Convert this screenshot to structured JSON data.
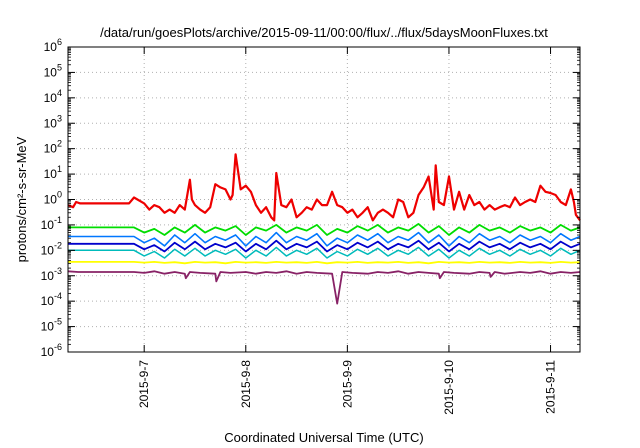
{
  "chart_data": {
    "type": "line",
    "title": "/data/run/goesPlots/archive/2015-09-11/00:00/flux/../flux/5daysMoonFluxes.txt",
    "xlabel": "Coordinated Universal Time (UTC)",
    "ylabel": "protons/cm²-s-sr-MeV",
    "yscale": "log",
    "ylim_exp": [
      -6,
      6
    ],
    "y_ticks": [
      {
        "base": "10",
        "exp": "-6"
      },
      {
        "base": "10",
        "exp": "-5"
      },
      {
        "base": "10",
        "exp": "-4"
      },
      {
        "base": "10",
        "exp": "-3"
      },
      {
        "base": "10",
        "exp": "-2"
      },
      {
        "base": "10",
        "exp": "-1"
      },
      {
        "base": "10",
        "exp": "0"
      },
      {
        "base": "10",
        "exp": "1"
      },
      {
        "base": "10",
        "exp": "2"
      },
      {
        "base": "10",
        "exp": "3"
      },
      {
        "base": "10",
        "exp": "4"
      },
      {
        "base": "10",
        "exp": "5"
      },
      {
        "base": "10",
        "exp": "6"
      }
    ],
    "xlim": [
      6.0,
      11.04
    ],
    "x_ticks": [
      {
        "value": 6.75,
        "label": "2015-9-7"
      },
      {
        "value": 7.75,
        "label": "2015-9-8"
      },
      {
        "value": 8.75,
        "label": "2015-9-9"
      },
      {
        "value": 9.75,
        "label": "2015-9-10"
      },
      {
        "value": 10.75,
        "label": "2015-9-11"
      }
    ],
    "grid": true,
    "series": [
      {
        "color": "#ee0000",
        "width": 2.2,
        "x": [
          6.0,
          6.05,
          6.08,
          6.12,
          6.2,
          6.3,
          6.4,
          6.6,
          6.65,
          6.75,
          6.8,
          6.85,
          6.9,
          6.95,
          7.0,
          7.05,
          7.1,
          7.15,
          7.2,
          7.22,
          7.25,
          7.3,
          7.35,
          7.4,
          7.45,
          7.5,
          7.55,
          7.6,
          7.62,
          7.65,
          7.7,
          7.75,
          7.8,
          7.85,
          7.9,
          7.95,
          8.0,
          8.03,
          8.05,
          8.1,
          8.15,
          8.2,
          8.25,
          8.3,
          8.35,
          8.4,
          8.45,
          8.5,
          8.55,
          8.6,
          8.65,
          8.7,
          8.75,
          8.8,
          8.85,
          8.9,
          8.95,
          9.0,
          9.05,
          9.1,
          9.15,
          9.2,
          9.25,
          9.3,
          9.35,
          9.4,
          9.45,
          9.5,
          9.55,
          9.6,
          9.62,
          9.65,
          9.7,
          9.75,
          9.8,
          9.85,
          9.9,
          9.95,
          10.0,
          10.05,
          10.1,
          10.15,
          10.2,
          10.25,
          10.3,
          10.35,
          10.4,
          10.45,
          10.5,
          10.55,
          10.6,
          10.65,
          10.7,
          10.75,
          10.8,
          10.85,
          10.9,
          10.95,
          10.98,
          11.0,
          11.04
        ],
        "y": [
          0.6,
          0.5,
          0.8,
          0.7,
          0.7,
          0.7,
          0.7,
          0.7,
          1.2,
          0.7,
          0.4,
          0.6,
          0.5,
          0.3,
          0.4,
          0.3,
          0.6,
          0.4,
          6.0,
          1.0,
          0.6,
          0.4,
          0.3,
          0.5,
          4.0,
          3.0,
          2.5,
          1.0,
          1.5,
          60,
          2.5,
          3.5,
          2.0,
          0.6,
          0.3,
          0.5,
          0.2,
          0.15,
          11.0,
          0.6,
          0.5,
          1.0,
          0.2,
          0.3,
          0.5,
          0.4,
          1.0,
          0.6,
          0.6,
          2.0,
          0.6,
          0.5,
          0.3,
          0.4,
          0.2,
          0.3,
          0.5,
          0.15,
          0.3,
          0.4,
          0.3,
          0.2,
          1.0,
          0.8,
          0.2,
          0.3,
          1.5,
          3.0,
          8.0,
          0.4,
          22,
          0.8,
          0.6,
          8.0,
          0.4,
          2.0,
          0.4,
          1.5,
          0.6,
          0.8,
          0.4,
          0.6,
          0.4,
          0.5,
          0.6,
          0.5,
          1.2,
          0.6,
          0.8,
          1.0,
          0.8,
          3.5,
          2.0,
          1.8,
          1.5,
          0.8,
          0.6,
          2.5,
          0.8,
          0.25,
          0.15
        ]
      },
      {
        "color": "#00dd00",
        "width": 1.8,
        "x": [
          6.0,
          6.1,
          6.65,
          6.75,
          6.85,
          6.95,
          7.05,
          7.15,
          7.25,
          7.35,
          7.45,
          7.55,
          7.65,
          7.75,
          7.85,
          7.95,
          8.05,
          8.15,
          8.25,
          8.35,
          8.45,
          8.55,
          8.65,
          8.75,
          8.85,
          8.95,
          9.05,
          9.15,
          9.25,
          9.35,
          9.45,
          9.55,
          9.65,
          9.75,
          9.85,
          9.95,
          10.05,
          10.15,
          10.25,
          10.35,
          10.45,
          10.55,
          10.65,
          10.75,
          10.85,
          10.95,
          11.04
        ],
        "y": [
          0.08,
          0.08,
          0.08,
          0.05,
          0.07,
          0.04,
          0.08,
          0.05,
          0.1,
          0.05,
          0.08,
          0.06,
          0.09,
          0.04,
          0.08,
          0.06,
          0.1,
          0.05,
          0.08,
          0.06,
          0.1,
          0.04,
          0.07,
          0.05,
          0.09,
          0.06,
          0.1,
          0.05,
          0.08,
          0.06,
          0.11,
          0.05,
          0.09,
          0.04,
          0.08,
          0.05,
          0.1,
          0.06,
          0.08,
          0.05,
          0.09,
          0.06,
          0.08,
          0.05,
          0.1,
          0.06,
          0.08
        ]
      },
      {
        "color": "#0077ff",
        "width": 1.6,
        "x": [
          6.0,
          6.1,
          6.65,
          6.75,
          6.85,
          6.95,
          7.05,
          7.15,
          7.25,
          7.35,
          7.45,
          7.55,
          7.65,
          7.75,
          7.85,
          7.95,
          8.05,
          8.15,
          8.25,
          8.35,
          8.45,
          8.55,
          8.65,
          8.75,
          8.85,
          8.95,
          9.05,
          9.15,
          9.25,
          9.35,
          9.45,
          9.55,
          9.65,
          9.75,
          9.85,
          9.95,
          10.05,
          10.15,
          10.25,
          10.35,
          10.45,
          10.55,
          10.65,
          10.75,
          10.85,
          10.95,
          11.04
        ],
        "y": [
          0.035,
          0.035,
          0.035,
          0.02,
          0.03,
          0.015,
          0.04,
          0.02,
          0.045,
          0.02,
          0.035,
          0.025,
          0.04,
          0.015,
          0.035,
          0.02,
          0.05,
          0.02,
          0.035,
          0.025,
          0.045,
          0.015,
          0.03,
          0.02,
          0.04,
          0.025,
          0.045,
          0.02,
          0.035,
          0.025,
          0.05,
          0.02,
          0.04,
          0.015,
          0.035,
          0.02,
          0.045,
          0.025,
          0.035,
          0.02,
          0.04,
          0.025,
          0.035,
          0.02,
          0.045,
          0.025,
          0.035
        ]
      },
      {
        "color": "#0000cc",
        "width": 1.8,
        "x": [
          6.0,
          6.1,
          6.65,
          6.75,
          6.85,
          6.95,
          7.05,
          7.15,
          7.25,
          7.35,
          7.45,
          7.55,
          7.65,
          7.75,
          7.85,
          7.95,
          8.05,
          8.15,
          8.25,
          8.35,
          8.45,
          8.55,
          8.65,
          8.75,
          8.85,
          8.95,
          9.05,
          9.15,
          9.25,
          9.35,
          9.45,
          9.55,
          9.65,
          9.75,
          9.85,
          9.95,
          10.05,
          10.15,
          10.25,
          10.35,
          10.45,
          10.55,
          10.65,
          10.75,
          10.85,
          10.95,
          11.04
        ],
        "y": [
          0.018,
          0.018,
          0.018,
          0.011,
          0.016,
          0.009,
          0.02,
          0.011,
          0.022,
          0.011,
          0.018,
          0.013,
          0.02,
          0.009,
          0.018,
          0.011,
          0.024,
          0.011,
          0.018,
          0.013,
          0.022,
          0.009,
          0.016,
          0.011,
          0.02,
          0.013,
          0.022,
          0.011,
          0.018,
          0.013,
          0.024,
          0.011,
          0.02,
          0.009,
          0.018,
          0.011,
          0.022,
          0.013,
          0.018,
          0.011,
          0.02,
          0.013,
          0.018,
          0.011,
          0.022,
          0.013,
          0.018
        ]
      },
      {
        "color": "#00bbbb",
        "width": 1.5,
        "x": [
          6.0,
          6.1,
          6.65,
          6.75,
          6.85,
          6.95,
          7.05,
          7.15,
          7.25,
          7.35,
          7.45,
          7.55,
          7.65,
          7.75,
          7.85,
          7.95,
          8.05,
          8.15,
          8.25,
          8.35,
          8.45,
          8.55,
          8.65,
          8.75,
          8.85,
          8.95,
          9.05,
          9.15,
          9.25,
          9.35,
          9.45,
          9.55,
          9.65,
          9.75,
          9.85,
          9.95,
          10.05,
          10.15,
          10.25,
          10.35,
          10.45,
          10.55,
          10.65,
          10.75,
          10.85,
          10.95,
          11.04
        ],
        "y": [
          0.01,
          0.01,
          0.01,
          0.006,
          0.009,
          0.005,
          0.011,
          0.006,
          0.012,
          0.006,
          0.01,
          0.007,
          0.011,
          0.005,
          0.01,
          0.006,
          0.013,
          0.006,
          0.01,
          0.007,
          0.012,
          0.005,
          0.009,
          0.006,
          0.011,
          0.007,
          0.012,
          0.006,
          0.01,
          0.007,
          0.013,
          0.006,
          0.011,
          0.005,
          0.01,
          0.006,
          0.012,
          0.007,
          0.01,
          0.006,
          0.011,
          0.007,
          0.01,
          0.006,
          0.012,
          0.007,
          0.01
        ]
      },
      {
        "color": "#ffff00",
        "width": 1.8,
        "x": [
          6.0,
          6.1,
          6.65,
          6.75,
          6.85,
          6.95,
          7.05,
          7.15,
          7.25,
          7.35,
          7.45,
          7.55,
          7.65,
          7.75,
          7.85,
          7.95,
          8.05,
          8.15,
          8.25,
          8.35,
          8.45,
          8.55,
          8.65,
          8.75,
          8.85,
          8.95,
          9.05,
          9.15,
          9.25,
          9.35,
          9.45,
          9.55,
          9.65,
          9.75,
          9.85,
          9.95,
          10.05,
          10.15,
          10.25,
          10.35,
          10.45,
          10.55,
          10.65,
          10.75,
          10.85,
          10.95,
          11.04
        ],
        "y": [
          0.0035,
          0.0035,
          0.0035,
          0.0033,
          0.0035,
          0.0032,
          0.0034,
          0.0031,
          0.0035,
          0.0033,
          0.0034,
          0.0031,
          0.0035,
          0.0033,
          0.0034,
          0.0032,
          0.0035,
          0.0033,
          0.0034,
          0.0032,
          0.0035,
          0.0031,
          0.0034,
          0.0033,
          0.0035,
          0.0032,
          0.0034,
          0.0033,
          0.0035,
          0.0032,
          0.0034,
          0.0031,
          0.0035,
          0.0033,
          0.0034,
          0.0032,
          0.0035,
          0.0033,
          0.0034,
          0.0032,
          0.0035,
          0.0033,
          0.0034,
          0.0032,
          0.0035,
          0.0033,
          0.0034
        ]
      },
      {
        "color": "#882266",
        "width": 1.8,
        "x": [
          6.0,
          6.1,
          6.65,
          6.75,
          6.85,
          6.95,
          7.05,
          7.15,
          7.16,
          7.2,
          7.3,
          7.45,
          7.46,
          7.5,
          7.6,
          7.75,
          7.85,
          7.95,
          8.05,
          8.15,
          8.25,
          8.35,
          8.45,
          8.6,
          8.65,
          8.7,
          8.8,
          8.95,
          9.05,
          9.15,
          9.25,
          9.35,
          9.45,
          9.55,
          9.65,
          9.66,
          9.7,
          9.8,
          9.95,
          10.05,
          10.15,
          10.16,
          10.2,
          10.3,
          10.45,
          10.55,
          10.65,
          10.75,
          10.85,
          10.95,
          11.04
        ],
        "y": [
          0.0015,
          0.0014,
          0.0014,
          0.0013,
          0.0015,
          0.0012,
          0.0014,
          0.0012,
          0.0008,
          0.0014,
          0.0013,
          0.0012,
          0.0006,
          0.0014,
          0.0013,
          0.0014,
          0.0012,
          0.0014,
          0.0013,
          0.0015,
          0.0012,
          0.0014,
          0.0013,
          0.0012,
          8e-05,
          0.0014,
          0.0013,
          0.0012,
          0.0014,
          0.0013,
          0.0015,
          0.0012,
          0.0014,
          0.0013,
          0.0012,
          0.0008,
          0.0014,
          0.0013,
          0.0012,
          0.0014,
          0.0013,
          0.0009,
          0.0014,
          0.0012,
          0.0014,
          0.0013,
          0.0015,
          0.0012,
          0.0014,
          0.0013,
          0.0014
        ]
      }
    ]
  }
}
